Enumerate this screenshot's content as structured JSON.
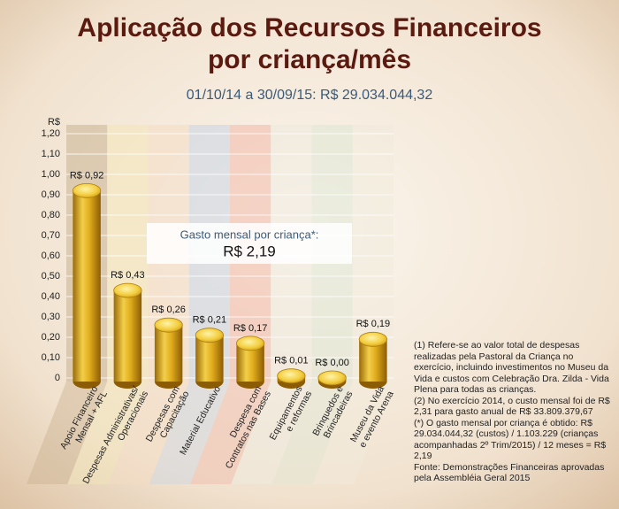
{
  "chart_data": {
    "type": "bar",
    "title": [
      "Aplicação dos Recursos Financeiros",
      "por criança/mês"
    ],
    "subtitle": "01/10/14 a 30/09/15: R$ 29.034.044,32",
    "y_label": "R$",
    "categories": [
      [
        "Apoio Financeiro",
        "Mensal + AFL"
      ],
      [
        "Despesas Administrativas/",
        "Operacionais"
      ],
      [
        "Despesas com",
        "Capacitação"
      ],
      [
        "Material Educativo"
      ],
      [
        "Despesa com",
        "Contratos nas Bases"
      ],
      [
        "Equipamentos",
        "e reformas"
      ],
      [
        "Brinquedos e",
        "Brincadeiras"
      ],
      [
        "Museu da Vida",
        "e evento Arena"
      ]
    ],
    "values": [
      0.92,
      0.43,
      0.26,
      0.21,
      0.17,
      0.01,
      0.0,
      0.19
    ],
    "value_labels": [
      "R$ 0,92",
      "R$ 0,43",
      "R$ 0,26",
      "R$ 0,21",
      "R$ 0,17",
      "R$ 0,01",
      "R$ 0,00",
      "R$ 0,19"
    ],
    "color": "#e2b320",
    "ylim": [
      0,
      1.2
    ],
    "yticks": [
      0,
      {
        "value": 0.1,
        "label": "0,10"
      },
      {
        "value": 0.2,
        "label": "0,20"
      },
      {
        "value": 0.3,
        "label": "0,30"
      },
      {
        "value": 0.4,
        "label": "0,40"
      },
      {
        "value": 0.5,
        "label": "0,50"
      },
      {
        "value": 0.6,
        "label": "0,60"
      },
      {
        "value": 0.7,
        "label": "0,70"
      },
      {
        "value": 0.8,
        "label": "0,80"
      },
      {
        "value": 0.9,
        "label": "0,90"
      },
      {
        "value": 1.0,
        "label": "1,00"
      },
      {
        "value": 1.1,
        "label": "1,10"
      },
      {
        "value": 1.2,
        "label": "1,20"
      }
    ],
    "grid": true,
    "annotation": {
      "label": "Gasto mensal por criança*:",
      "value": "R$ 2,19"
    },
    "notes": [
      "(1) Refere-se ao valor total de despesas realizadas pela Pastoral da Criança no exercício, incluindo investimentos no Museu da Vida e custos com Celebração Dra. Zilda - Vida Plena para todas as crianças.",
      "(2) No exercício 2014, o custo mensal foi de R$ 2,31 para gasto anual de R$ 33.809.379,67",
      "(*) O gasto mensal por criança é obtido: R$ 29.034.044,32 (custos) / 1.103.229 (crianças acompanhadas 2º Trim/2015) / 12 meses = R$ 2,19",
      "Fonte: Demonstrações Financeiras aprovadas pela Assembléia Geral 2015"
    ]
  }
}
